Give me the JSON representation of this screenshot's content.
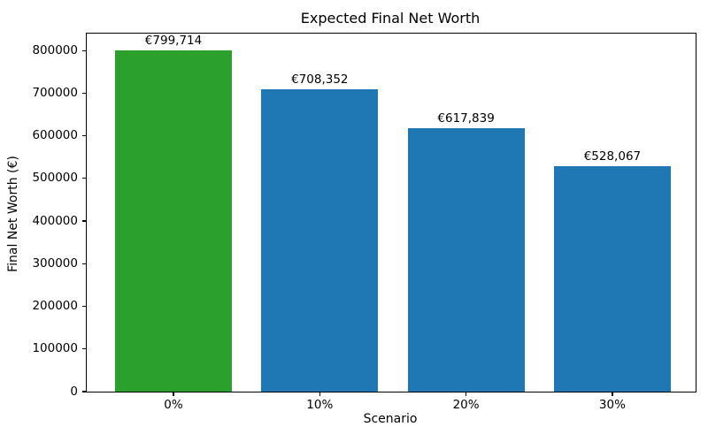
{
  "chart_data": {
    "type": "bar",
    "title": "Expected Final Net Worth",
    "xlabel": "Scenario",
    "ylabel": "Final Net Worth (€)",
    "categories": [
      "0%",
      "10%",
      "20%",
      "30%"
    ],
    "values": [
      799714,
      708352,
      617839,
      528067
    ],
    "value_labels": [
      "€799,714",
      "€708,352",
      "€617,839",
      "€528,067"
    ],
    "bar_colors": [
      "#2ca02c",
      "#1f77b4",
      "#1f77b4",
      "#1f77b4"
    ],
    "highlight_color": "#2ca02c",
    "default_bar_color": "#1f77b4",
    "ylim": [
      0,
      839700
    ],
    "yticks": [
      0,
      100000,
      200000,
      300000,
      400000,
      500000,
      600000,
      700000,
      800000
    ],
    "ytick_labels": [
      "0",
      "100000",
      "200000",
      "300000",
      "400000",
      "500000",
      "600000",
      "700000",
      "800000"
    ],
    "grid": false,
    "legend": null,
    "axis_color": "#000000",
    "background_color": "#ffffff"
  }
}
